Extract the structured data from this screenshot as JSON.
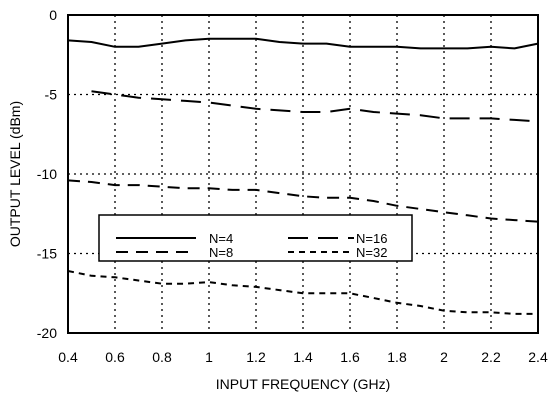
{
  "chart_data": {
    "type": "line",
    "title": "",
    "xlabel": "INPUT FREQUENCY (GHz)",
    "ylabel": "OUTPUT LEVEL (dBm)",
    "xlim": [
      0.4,
      2.4
    ],
    "ylim": [
      -20,
      0
    ],
    "xticks": [
      0.4,
      0.6,
      0.8,
      1,
      1.2,
      1.4,
      1.6,
      1.8,
      2,
      2.2,
      2.4
    ],
    "yticks": [
      0,
      -5,
      -10,
      -15,
      -20
    ],
    "x_tick_labels": [
      "0.4",
      "0.6",
      "0.8",
      "1",
      "1.2",
      "1.4",
      "1.6",
      "1.8",
      "2",
      "2.2",
      "2.4"
    ],
    "y_tick_labels": [
      "0",
      "-5",
      "-10",
      "-15",
      "-20"
    ],
    "grid": true,
    "legend_position": "center-left",
    "series": [
      {
        "name": "N=4",
        "dash": "solid",
        "x": [
          0.4,
          0.5,
          0.6,
          0.7,
          0.8,
          0.9,
          1.0,
          1.1,
          1.2,
          1.3,
          1.4,
          1.5,
          1.6,
          1.7,
          1.8,
          1.9,
          2.0,
          2.1,
          2.2,
          2.3,
          2.4
        ],
        "values": [
          -1.6,
          -1.7,
          -2.0,
          -2.0,
          -1.8,
          -1.6,
          -1.5,
          -1.5,
          -1.5,
          -1.7,
          -1.8,
          -1.8,
          -2.0,
          -2.0,
          -2.0,
          -2.1,
          -2.1,
          -2.1,
          -2.0,
          -2.1,
          -1.8
        ]
      },
      {
        "name": "N=16",
        "dash": "long",
        "x": [
          0.5,
          0.6,
          0.7,
          0.8,
          0.9,
          1.0,
          1.1,
          1.2,
          1.3,
          1.4,
          1.5,
          1.6,
          1.7,
          1.8,
          1.9,
          2.0,
          2.1,
          2.2,
          2.3,
          2.4
        ],
        "values": [
          -4.8,
          -5.0,
          -5.2,
          -5.3,
          -5.4,
          -5.5,
          -5.7,
          -5.9,
          -6.0,
          -6.1,
          -6.1,
          -5.9,
          -6.1,
          -6.2,
          -6.3,
          -6.5,
          -6.5,
          -6.5,
          -6.6,
          -6.7
        ]
      },
      {
        "name": "N=8",
        "dash": "medium",
        "x": [
          0.4,
          0.5,
          0.6,
          0.7,
          0.8,
          0.9,
          1.0,
          1.1,
          1.2,
          1.3,
          1.4,
          1.5,
          1.6,
          1.7,
          1.8,
          1.9,
          2.0,
          2.1,
          2.2,
          2.3,
          2.4
        ],
        "values": [
          -10.4,
          -10.5,
          -10.7,
          -10.7,
          -10.8,
          -10.9,
          -10.9,
          -11.0,
          -11.0,
          -11.2,
          -11.4,
          -11.5,
          -11.5,
          -11.7,
          -12.0,
          -12.2,
          -12.4,
          -12.6,
          -12.8,
          -12.9,
          -13.0
        ]
      },
      {
        "name": "N=32",
        "dash": "short",
        "x": [
          0.4,
          0.5,
          0.6,
          0.7,
          0.8,
          0.9,
          1.0,
          1.1,
          1.2,
          1.3,
          1.4,
          1.5,
          1.6,
          1.7,
          1.8,
          1.9,
          2.0,
          2.1,
          2.2,
          2.3,
          2.4
        ],
        "values": [
          -16.1,
          -16.4,
          -16.5,
          -16.7,
          -16.9,
          -16.9,
          -16.8,
          -17.0,
          -17.1,
          -17.3,
          -17.5,
          -17.5,
          -17.5,
          -17.8,
          -18.1,
          -18.3,
          -18.6,
          -18.7,
          -18.7,
          -18.8,
          -18.8
        ]
      }
    ]
  }
}
